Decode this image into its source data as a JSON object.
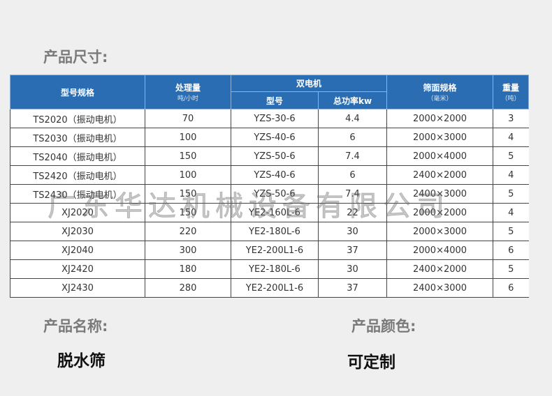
{
  "size_title": "产品尺寸:",
  "table": {
    "headers": {
      "model": "型号规格",
      "capacity": "处理量",
      "capacity_unit": "吨/小时",
      "motor": "双电机",
      "motor_model": "型号",
      "motor_power": "总功率kw",
      "screen": "筛面规格",
      "screen_unit": "（毫米）",
      "weight": "重量",
      "weight_unit": "（吨）"
    },
    "rows": [
      [
        "TS2020（振动电机）",
        "70",
        "YZS-30-6",
        "4.4",
        "2000×2000",
        "3"
      ],
      [
        "TS2030（振动电机）",
        "100",
        "YZS-40-6",
        "6",
        "2000×3000",
        "4"
      ],
      [
        "TS2040（振动电机）",
        "150",
        "YZS-50-6",
        "7.4",
        "2000×4000",
        "5"
      ],
      [
        "TS2420（振动电机）",
        "100",
        "YZS-40-6",
        "6",
        "2400×2000",
        "4"
      ],
      [
        "TS2430（振动电机）",
        "150",
        "YZS-50-6",
        "7.4",
        "2400×3000",
        "5"
      ],
      [
        "XJ2020",
        "150",
        "YE2-160L-6",
        "22",
        "2000×2000",
        "4"
      ],
      [
        "XJ2030",
        "220",
        "YE2-180L-6",
        "30",
        "2000×3000",
        "5"
      ],
      [
        "XJ2040",
        "300",
        "YE2-200L1-6",
        "37",
        "2000×4000",
        "6"
      ],
      [
        "XJ2420",
        "180",
        "YE2-180L-6",
        "30",
        "2400×2000",
        "5"
      ],
      [
        "XJ2430",
        "280",
        "YE2-200L1-6",
        "37",
        "2400×3000",
        "6"
      ]
    ]
  },
  "name_title": "产品名称:",
  "name_value": "脱水筛",
  "color_title": "产品颜色:",
  "color_value": "可定制",
  "watermark": "广东华达机械设备有限公司"
}
